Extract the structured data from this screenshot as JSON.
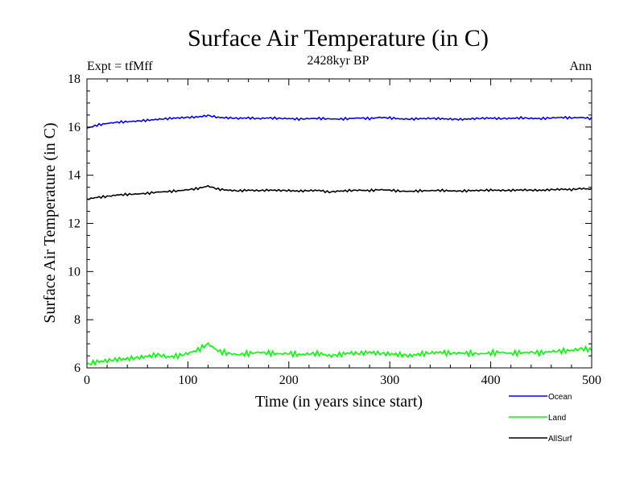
{
  "chart_data": {
    "type": "line",
    "title": "Surface Air Temperature (in C)",
    "subtitle": "2428kyr BP",
    "left_label": "Expt = tfMff",
    "right_label": "Ann",
    "xlabel": "Time (in years since start)",
    "ylabel": "Surface Air Temperature (in C)",
    "xlim": [
      0,
      500
    ],
    "ylim": [
      6,
      18
    ],
    "x_ticks": [
      0,
      100,
      200,
      300,
      400,
      500
    ],
    "y_ticks": [
      6,
      8,
      10,
      12,
      14,
      16,
      18
    ],
    "grid": false,
    "legend_position": "bottom-right",
    "series": [
      {
        "name": "Ocean",
        "color": "#0000ff",
        "x_start": 0,
        "x_step": 10,
        "values": [
          15.95,
          16.08,
          16.15,
          16.2,
          16.22,
          16.25,
          16.28,
          16.32,
          16.35,
          16.38,
          16.4,
          16.42,
          16.48,
          16.4,
          16.38,
          16.36,
          16.38,
          16.35,
          16.38,
          16.36,
          16.35,
          16.33,
          16.35,
          16.36,
          16.34,
          16.33,
          16.35,
          16.38,
          16.35,
          16.4,
          16.38,
          16.34,
          16.33,
          16.35,
          16.36,
          16.35,
          16.33,
          16.32,
          16.34,
          16.36,
          16.37,
          16.35,
          16.36,
          16.38,
          16.36,
          16.35,
          16.38,
          16.4,
          16.38,
          16.4,
          16.35
        ]
      },
      {
        "name": "Land",
        "color": "#00ff00",
        "x_start": 0,
        "x_step": 10,
        "values": [
          6.15,
          6.25,
          6.3,
          6.35,
          6.38,
          6.42,
          6.48,
          6.55,
          6.45,
          6.5,
          6.6,
          6.75,
          7.0,
          6.7,
          6.6,
          6.55,
          6.6,
          6.65,
          6.62,
          6.58,
          6.6,
          6.55,
          6.58,
          6.6,
          6.5,
          6.55,
          6.62,
          6.6,
          6.65,
          6.6,
          6.58,
          6.55,
          6.5,
          6.58,
          6.62,
          6.65,
          6.6,
          6.62,
          6.6,
          6.58,
          6.62,
          6.65,
          6.6,
          6.63,
          6.65,
          6.62,
          6.68,
          6.7,
          6.72,
          6.8,
          6.75
        ]
      },
      {
        "name": "AllSurf",
        "color": "#000000",
        "x_start": 0,
        "x_step": 10,
        "values": [
          13.0,
          13.08,
          13.12,
          13.18,
          13.2,
          13.22,
          13.25,
          13.3,
          13.32,
          13.35,
          13.4,
          13.45,
          13.55,
          13.42,
          13.38,
          13.35,
          13.38,
          13.36,
          13.38,
          13.37,
          13.36,
          13.34,
          13.36,
          13.37,
          13.3,
          13.34,
          13.36,
          13.38,
          13.36,
          13.4,
          13.38,
          13.34,
          13.33,
          13.35,
          13.36,
          13.37,
          13.35,
          13.34,
          13.36,
          13.37,
          13.38,
          13.37,
          13.37,
          13.39,
          13.38,
          13.37,
          13.4,
          13.42,
          13.4,
          13.45,
          13.42
        ]
      }
    ]
  }
}
